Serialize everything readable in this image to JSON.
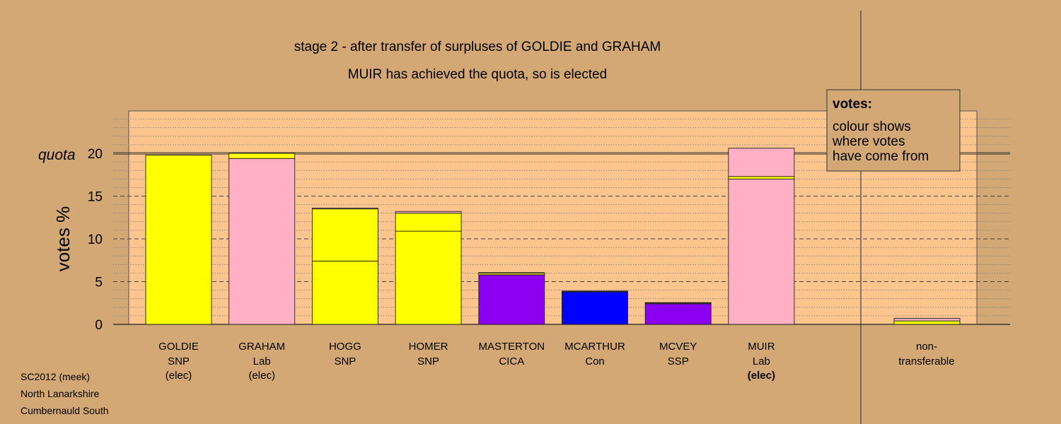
{
  "chart_data": {
    "type": "bar",
    "title": "stage 2 - after transfer of surpluses of GOLDIE and GRAHAM",
    "subtitle": "MUIR has achieved the quota, so is elected",
    "ylabel": "votes %",
    "ylim": [
      0,
      25
    ],
    "yticks": [
      0,
      5,
      10,
      15,
      20
    ],
    "quota": 20,
    "quota_label": "quota",
    "grid": "dashed major every 5, dotted minor every 1",
    "candidates": [
      {
        "name": "GOLDIE",
        "party": "SNP",
        "status": "(elec)",
        "segments": [
          {
            "from": "SNP",
            "value": 19.8,
            "color": "#ffff00"
          }
        ]
      },
      {
        "name": "GRAHAM",
        "party": "Lab",
        "status": "(elec)",
        "segments": [
          {
            "from": "Lab",
            "value": 19.4,
            "color": "#ffb0c4"
          },
          {
            "from": "SNP",
            "value": 0.6,
            "color": "#ffff00"
          }
        ]
      },
      {
        "name": "HOGG",
        "party": "SNP",
        "status": "",
        "segments": [
          {
            "from": "SNP",
            "value": 7.4,
            "color": "#ffff00"
          },
          {
            "from": "SNP",
            "value": 6.1,
            "color": "#ffff00"
          },
          {
            "from": "Lab",
            "value": 0.1,
            "color": "#ffb0c4"
          }
        ]
      },
      {
        "name": "HOMER",
        "party": "SNP",
        "status": "",
        "segments": [
          {
            "from": "SNP",
            "value": 10.9,
            "color": "#ffff00"
          },
          {
            "from": "SNP",
            "value": 2.1,
            "color": "#ffff00"
          },
          {
            "from": "Lab",
            "value": 0.2,
            "color": "#ffb0c4"
          }
        ]
      },
      {
        "name": "MASTERTON",
        "party": "CICA",
        "status": "",
        "segments": [
          {
            "from": "CICA",
            "value": 5.8,
            "color": "#8b00f0"
          },
          {
            "from": "SNP",
            "value": 0.2,
            "color": "#ffff00"
          },
          {
            "from": "Lab",
            "value": 0.05,
            "color": "#ffb0c4"
          }
        ]
      },
      {
        "name": "MCARTHUR",
        "party": "Con",
        "status": "",
        "segments": [
          {
            "from": "Con",
            "value": 3.8,
            "color": "#0000ff"
          },
          {
            "from": "SNP",
            "value": 0.05,
            "color": "#ffff00"
          },
          {
            "from": "Lab",
            "value": 0.05,
            "color": "#ffb0c4"
          }
        ]
      },
      {
        "name": "MCVEY",
        "party": "SSP",
        "status": "",
        "segments": [
          {
            "from": "SSP",
            "value": 2.4,
            "color": "#8b00f0"
          },
          {
            "from": "SNP",
            "value": 0.1,
            "color": "#ffff00"
          },
          {
            "from": "Lab",
            "value": 0.05,
            "color": "#ffb0c4"
          }
        ]
      },
      {
        "name": "MUIR",
        "party": "Lab",
        "status": "(elec)",
        "segments": [
          {
            "from": "Lab",
            "value": 17.0,
            "color": "#ffb0c4"
          },
          {
            "from": "SNP",
            "value": 0.3,
            "color": "#ffff00"
          },
          {
            "from": "Lab",
            "value": 3.3,
            "color": "#ffb0c4"
          }
        ]
      }
    ],
    "nontransferable": {
      "label_line1": "non-",
      "label_line2": "transferable",
      "segments": [
        {
          "from": "SNP",
          "value": 0.4,
          "color": "#ffff00"
        },
        {
          "from": "Lab",
          "value": 0.3,
          "color": "#ffb0c4"
        }
      ]
    },
    "legend": {
      "title": "votes:",
      "lines": [
        "colour shows",
        "where votes",
        "have come from"
      ],
      "position": "top-right"
    }
  },
  "footer": {
    "line1": "SC2012 (meek)",
    "line2": "North Lanarkshire",
    "line3": "Cumbernauld South"
  },
  "colors": {
    "background": "#d4a875",
    "plot_area": "#fdc58e",
    "snp": "#ffff00",
    "lab": "#ffb0c4",
    "cica": "#8b00f0",
    "con": "#0000ff",
    "ssp": "#8b00f0"
  }
}
